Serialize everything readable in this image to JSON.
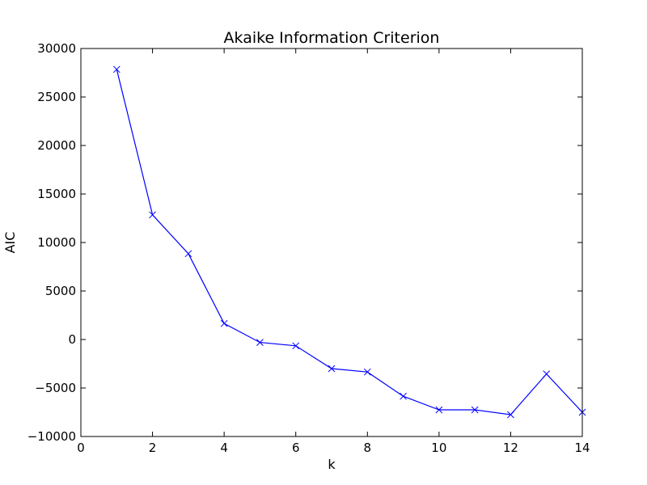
{
  "chart_data": {
    "type": "line",
    "title": "Akaike Information Criterion",
    "xlabel": "k",
    "ylabel": "AIC",
    "xlim": [
      0,
      14
    ],
    "ylim": [
      -10000,
      30000
    ],
    "xticks": [
      0,
      2,
      4,
      6,
      8,
      10,
      12,
      14
    ],
    "xtick_labels": [
      "0",
      "2",
      "4",
      "6",
      "8",
      "10",
      "12",
      "14"
    ],
    "yticks": [
      -10000,
      -5000,
      0,
      5000,
      10000,
      15000,
      20000,
      25000,
      30000
    ],
    "ytick_labels": [
      "−10000",
      "−5000",
      "0",
      "5000",
      "10000",
      "15000",
      "20000",
      "25000",
      "30000"
    ],
    "grid": false,
    "series": [
      {
        "name": "AIC",
        "color": "#0000ff",
        "marker": "x",
        "x": [
          1,
          2,
          3,
          4,
          5,
          6,
          7,
          8,
          9,
          10,
          11,
          12,
          13,
          14
        ],
        "y": [
          27850,
          12850,
          8850,
          1650,
          -300,
          -650,
          -3000,
          -3350,
          -5850,
          -7250,
          -7250,
          -7750,
          -3550,
          -7500
        ]
      }
    ]
  }
}
